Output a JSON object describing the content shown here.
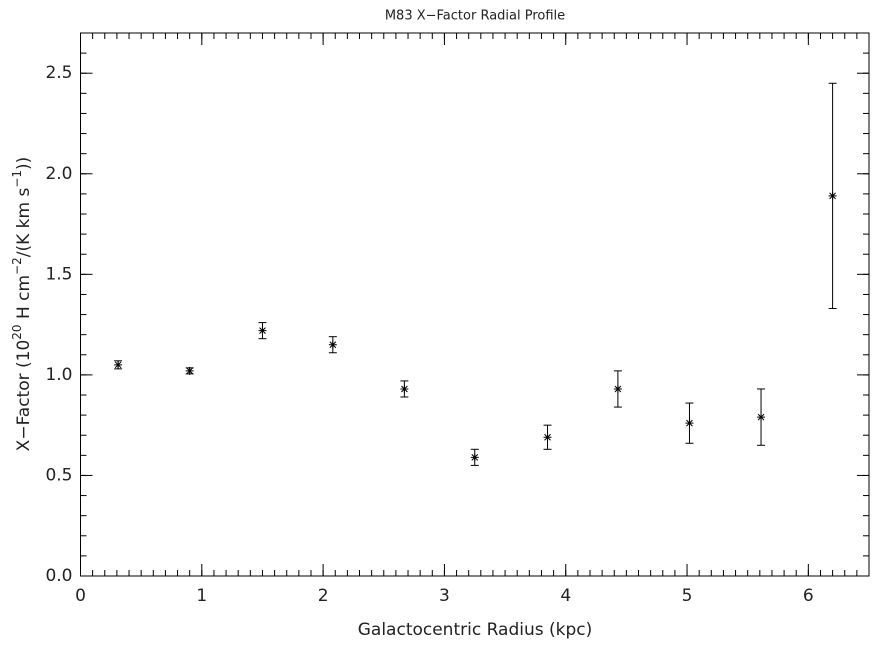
{
  "chart_data": {
    "type": "scatter",
    "title": "M83 X−Factor Radial Profile",
    "xlabel": "Galactocentric Radius (kpc)",
    "ylabel": [
      {
        "text": "X−Factor (10",
        "sup": false
      },
      {
        "text": "20",
        "sup": true
      },
      {
        "text": " H cm",
        "sup": false
      },
      {
        "text": "−2",
        "sup": true
      },
      {
        "text": "/(K km s",
        "sup": false
      },
      {
        "text": "−1",
        "sup": true
      },
      {
        "text": "))",
        "sup": false
      }
    ],
    "x": [
      0.31,
      0.9,
      1.5,
      2.08,
      2.67,
      3.25,
      3.85,
      4.43,
      5.02,
      5.61,
      6.2
    ],
    "values": [
      1.05,
      1.02,
      1.22,
      1.15,
      0.93,
      0.59,
      0.69,
      0.93,
      0.76,
      0.79,
      1.89
    ],
    "errors": [
      0.02,
      0.015,
      0.04,
      0.04,
      0.04,
      0.04,
      0.06,
      0.09,
      0.1,
      0.14,
      0.56
    ],
    "color": "#000000",
    "xlim": [
      0,
      6.5
    ],
    "ylim": [
      0,
      2.7
    ],
    "xticks": [
      0,
      1,
      2,
      3,
      4,
      5,
      6
    ],
    "yticks": [
      {
        "value": 0,
        "label": "0.0"
      },
      0.5,
      {
        "value": 1,
        "label": "1.0"
      },
      1.5,
      {
        "value": 2,
        "label": "2.0"
      },
      2.5
    ]
  }
}
